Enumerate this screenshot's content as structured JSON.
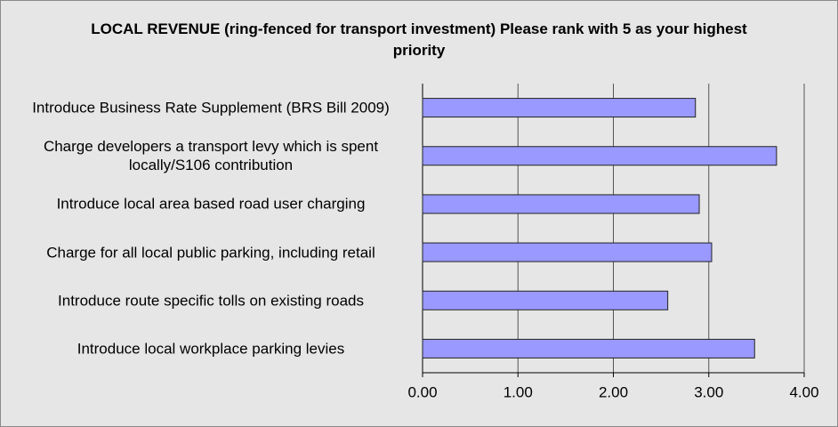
{
  "chart_data": {
    "type": "bar",
    "orientation": "horizontal",
    "title": "LOCAL REVENUE (ring-fenced for transport investment) Please rank with 5 as your highest priority",
    "categories": [
      "Introduce Business Rate Supplement (BRS Bill 2009)",
      "Charge developers a transport levy which is spent locally/S106 contribution",
      "Introduce local area based road user charging",
      "Charge for all local public parking, including retail",
      "Introduce route specific tolls on existing roads",
      "Introduce local workplace parking levies"
    ],
    "values": [
      2.86,
      3.71,
      2.9,
      3.03,
      2.57,
      3.48
    ],
    "color": "#9999ff",
    "xlim": [
      0,
      4
    ],
    "xticks": [
      {
        "value": 0,
        "label": "0.00"
      },
      {
        "value": 1,
        "label": "1.00"
      },
      {
        "value": 2,
        "label": "2.00"
      },
      {
        "value": 3,
        "label": "3.00"
      },
      {
        "value": 4,
        "label": "4.00"
      }
    ],
    "grid": true
  }
}
